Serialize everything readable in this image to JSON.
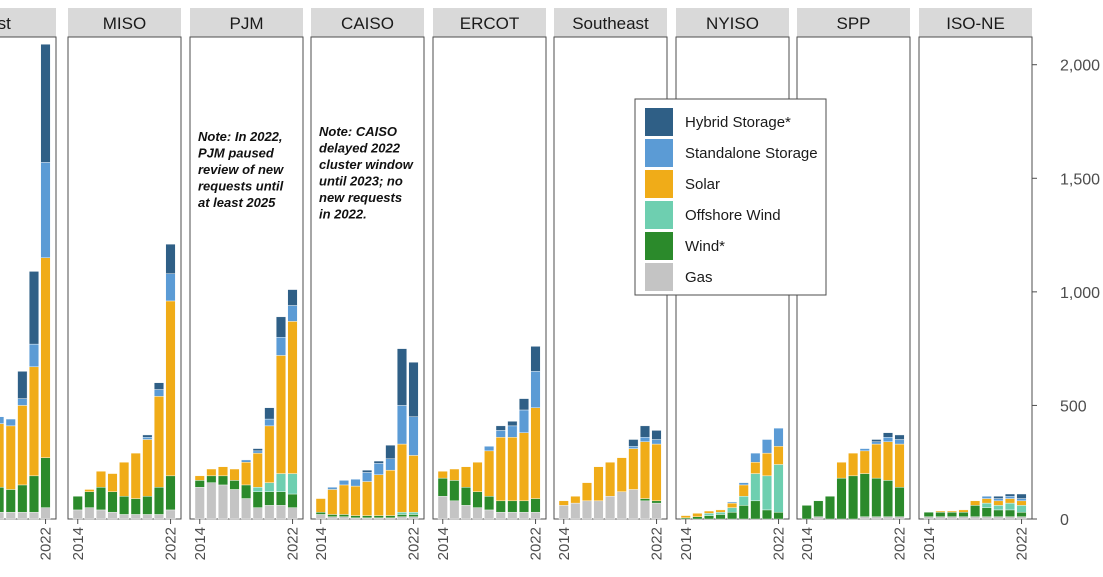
{
  "chart_data": {
    "type": "bar",
    "stacked": true,
    "faceted": true,
    "x": [
      2014,
      2015,
      2016,
      2017,
      2018,
      2019,
      2020,
      2021,
      2022
    ],
    "x_tick_labels": [
      "2014",
      "2022"
    ],
    "y_ticks": [
      0,
      500,
      1000,
      1500,
      2000
    ],
    "y_tick_labels": [
      "0",
      "500",
      "1,000",
      "1,500",
      "2,000"
    ],
    "ylim": [
      0,
      2100
    ],
    "grid": false,
    "legend_position": "top-right",
    "legend": [
      "Hybrid Storage*",
      "Standalone Storage",
      "Solar",
      "Offshore Wind",
      "Wind*",
      "Gas"
    ],
    "colors": {
      "Hybrid Storage*": "#2f5f86",
      "Standalone Storage": "#5b9bd5",
      "Solar": "#f0ac18",
      "Offshore Wind": "#6ecfb0",
      "Wind*": "#2b8a2b",
      "Gas": "#c4c4c4"
    },
    "stack_order": [
      "Gas",
      "Wind*",
      "Offshore Wind",
      "Solar",
      "Standalone Storage",
      "Hybrid Storage*"
    ],
    "panels": [
      {
        "region": "est",
        "series": {
          "Gas": [
            60,
            40,
            30,
            30,
            30,
            30,
            30,
            30,
            50
          ],
          "Wind*": [
            200,
            180,
            150,
            120,
            110,
            100,
            120,
            160,
            220
          ],
          "Offshore Wind": [
            0,
            0,
            0,
            0,
            0,
            0,
            0,
            0,
            0
          ],
          "Solar": [
            280,
            190,
            250,
            270,
            280,
            280,
            350,
            480,
            880
          ],
          "Standalone Storage": [
            0,
            0,
            0,
            20,
            30,
            30,
            30,
            100,
            420
          ],
          "Hybrid Storage*": [
            0,
            0,
            0,
            0,
            0,
            0,
            120,
            320,
            520
          ]
        }
      },
      {
        "region": "MISO",
        "series": {
          "Gas": [
            40,
            50,
            40,
            30,
            20,
            20,
            20,
            20,
            40
          ],
          "Wind*": [
            60,
            70,
            100,
            90,
            80,
            70,
            80,
            120,
            150
          ],
          "Offshore Wind": [
            0,
            0,
            0,
            0,
            0,
            0,
            0,
            0,
            0
          ],
          "Solar": [
            0,
            10,
            70,
            80,
            150,
            200,
            250,
            400,
            770
          ],
          "Standalone Storage": [
            0,
            0,
            0,
            0,
            0,
            0,
            10,
            30,
            120
          ],
          "Hybrid Storage*": [
            0,
            0,
            0,
            0,
            0,
            0,
            10,
            30,
            130
          ]
        }
      },
      {
        "region": "PJM",
        "series": {
          "Gas": [
            140,
            160,
            150,
            130,
            90,
            50,
            60,
            60,
            50
          ],
          "Wind*": [
            30,
            30,
            40,
            40,
            60,
            70,
            60,
            60,
            60
          ],
          "Offshore Wind": [
            0,
            0,
            0,
            0,
            0,
            20,
            40,
            80,
            90
          ],
          "Solar": [
            20,
            30,
            40,
            50,
            100,
            150,
            250,
            520,
            670
          ],
          "Standalone Storage": [
            0,
            0,
            0,
            0,
            10,
            10,
            30,
            80,
            70
          ],
          "Hybrid Storage*": [
            0,
            0,
            0,
            0,
            0,
            10,
            50,
            90,
            70
          ]
        }
      },
      {
        "region": "CAISO",
        "series": {
          "Gas": [
            20,
            10,
            10,
            5,
            5,
            5,
            5,
            10,
            10
          ],
          "Wind*": [
            10,
            10,
            10,
            10,
            10,
            10,
            10,
            10,
            10
          ],
          "Offshore Wind": [
            0,
            0,
            0,
            0,
            0,
            0,
            0,
            10,
            10
          ],
          "Solar": [
            60,
            110,
            130,
            130,
            150,
            180,
            200,
            300,
            250
          ],
          "Standalone Storage": [
            0,
            10,
            20,
            30,
            40,
            50,
            50,
            170,
            170
          ],
          "Hybrid Storage*": [
            0,
            0,
            0,
            0,
            10,
            10,
            60,
            250,
            240
          ]
        }
      },
      {
        "region": "ERCOT",
        "series": {
          "Gas": [
            100,
            80,
            60,
            50,
            40,
            30,
            30,
            30,
            30
          ],
          "Wind*": [
            80,
            90,
            80,
            70,
            60,
            50,
            50,
            50,
            60
          ],
          "Offshore Wind": [
            0,
            0,
            0,
            0,
            0,
            0,
            0,
            0,
            0
          ],
          "Solar": [
            30,
            50,
            90,
            130,
            200,
            280,
            280,
            300,
            400
          ],
          "Standalone Storage": [
            0,
            0,
            0,
            0,
            20,
            30,
            50,
            100,
            160
          ],
          "Hybrid Storage*": [
            0,
            0,
            0,
            0,
            0,
            20,
            20,
            50,
            110
          ]
        }
      },
      {
        "region": "Southeast",
        "series": {
          "Gas": [
            60,
            70,
            80,
            80,
            100,
            120,
            130,
            80,
            70
          ],
          "Wind*": [
            0,
            0,
            0,
            0,
            0,
            0,
            0,
            10,
            10
          ],
          "Offshore Wind": [
            0,
            0,
            0,
            0,
            0,
            0,
            0,
            0,
            0
          ],
          "Solar": [
            20,
            30,
            80,
            150,
            150,
            150,
            180,
            250,
            250
          ],
          "Standalone Storage": [
            0,
            0,
            0,
            0,
            0,
            0,
            10,
            20,
            20
          ],
          "Hybrid Storage*": [
            0,
            0,
            0,
            0,
            0,
            0,
            30,
            50,
            40
          ]
        }
      },
      {
        "region": "NYISO",
        "series": {
          "Gas": [
            0,
            0,
            0,
            0,
            0,
            0,
            0,
            0,
            0
          ],
          "Wind*": [
            5,
            10,
            15,
            20,
            30,
            60,
            80,
            40,
            30
          ],
          "Offshore Wind": [
            0,
            0,
            10,
            10,
            20,
            40,
            120,
            150,
            210
          ],
          "Solar": [
            10,
            15,
            10,
            10,
            20,
            50,
            50,
            100,
            80
          ],
          "Standalone Storage": [
            0,
            0,
            0,
            0,
            5,
            10,
            40,
            60,
            80
          ],
          "Hybrid Storage*": [
            0,
            0,
            0,
            0,
            0,
            0,
            0,
            0,
            0
          ]
        }
      },
      {
        "region": "SPP",
        "series": {
          "Gas": [
            0,
            10,
            0,
            0,
            0,
            10,
            10,
            10,
            10
          ],
          "Wind*": [
            60,
            70,
            100,
            180,
            190,
            190,
            170,
            160,
            130
          ],
          "Offshore Wind": [
            0,
            0,
            0,
            0,
            0,
            0,
            0,
            0,
            0
          ],
          "Solar": [
            0,
            0,
            0,
            70,
            100,
            100,
            150,
            170,
            190
          ],
          "Standalone Storage": [
            0,
            0,
            0,
            0,
            0,
            10,
            10,
            20,
            20
          ],
          "Hybrid Storage*": [
            0,
            0,
            0,
            0,
            0,
            0,
            10,
            20,
            20
          ]
        }
      },
      {
        "region": "ISO-NE",
        "series": {
          "Gas": [
            10,
            10,
            10,
            10,
            10,
            10,
            10,
            10,
            10
          ],
          "Wind*": [
            20,
            20,
            20,
            20,
            50,
            40,
            30,
            30,
            20
          ],
          "Offshore Wind": [
            0,
            0,
            0,
            0,
            0,
            20,
            20,
            30,
            30
          ],
          "Solar": [
            0,
            5,
            5,
            10,
            20,
            20,
            20,
            20,
            20
          ],
          "Standalone Storage": [
            0,
            0,
            0,
            0,
            0,
            10,
            10,
            10,
            10
          ],
          "Hybrid Storage*": [
            0,
            0,
            0,
            0,
            0,
            0,
            10,
            10,
            20
          ]
        }
      }
    ],
    "annotations": [
      {
        "region": "PJM",
        "lines": [
          "Note: In 2022,",
          "PJM paused",
          "review of new",
          "requests until",
          "at least 2025"
        ]
      },
      {
        "region": "CAISO",
        "lines": [
          "Note: CAISO",
          "delayed 2022",
          "cluster window",
          "until 2023; no",
          "new requests",
          "in 2022."
        ]
      }
    ]
  }
}
